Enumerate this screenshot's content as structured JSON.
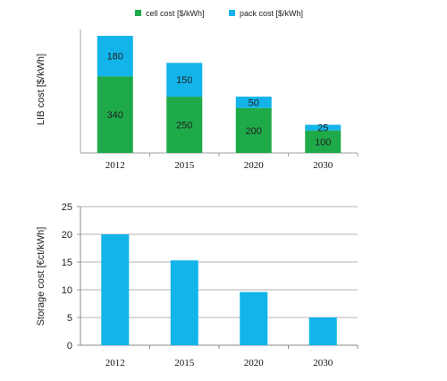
{
  "chart_data": [
    {
      "type": "bar",
      "stacked": true,
      "categories": [
        "2012",
        "2015",
        "2020",
        "2030"
      ],
      "series": [
        {
          "name": "cell cost [$/kWh]",
          "values": [
            340,
            250,
            200,
            100
          ],
          "color": "#1faa4a"
        },
        {
          "name": "pack cost [$/kWh]",
          "values": [
            180,
            150,
            50,
            25
          ],
          "color": "#12b4ea"
        }
      ],
      "ylabel": "LIB cost [$/kWh]",
      "xlabel": "",
      "ylim": [
        0,
        560
      ],
      "grid": false,
      "legend": "top",
      "show_y_ticks": false
    },
    {
      "type": "bar",
      "categories": [
        "2012",
        "2015",
        "2020",
        "2030"
      ],
      "series": [
        {
          "values": [
            20,
            15.3,
            9.6,
            5
          ],
          "color": "#12b4ea"
        }
      ],
      "ylabel": "Storage cost [€ct/kWh]",
      "xlabel": "",
      "ylim": [
        0,
        25
      ],
      "yticks": [
        0,
        5,
        10,
        15,
        20,
        25
      ],
      "grid": true,
      "legend": "none"
    }
  ]
}
